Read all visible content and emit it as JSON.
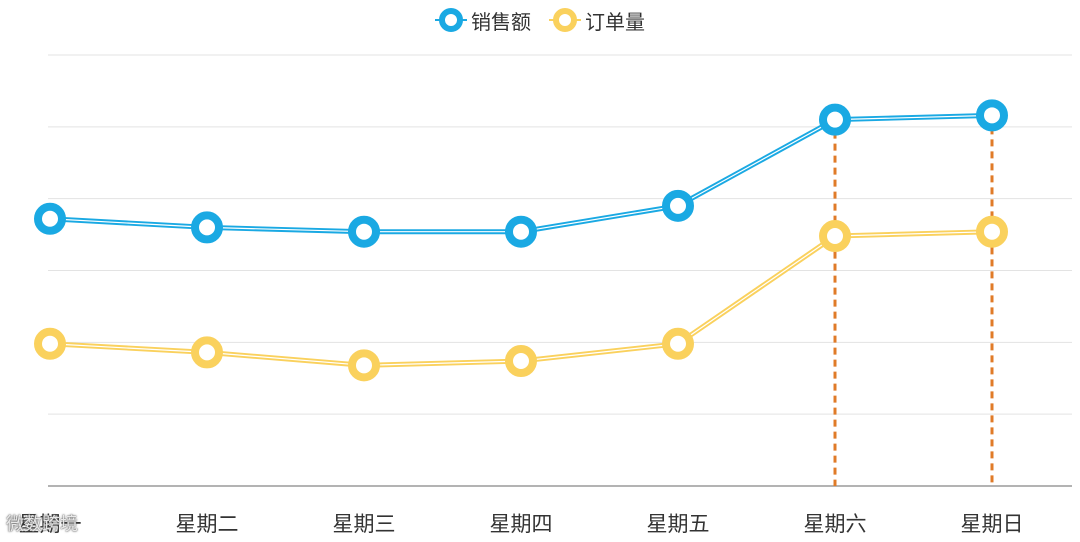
{
  "chart_data": {
    "type": "line",
    "categories": [
      "星期一",
      "星期二",
      "星期三",
      "星期四",
      "星期五",
      "星期六",
      "星期日"
    ],
    "series": [
      {
        "name": "销售额",
        "values": [
          62,
          60,
          59,
          59,
          65,
          85,
          86
        ],
        "color": "#1AA9E3"
      },
      {
        "name": "订单量",
        "values": [
          33,
          31,
          28,
          29,
          33,
          58,
          59
        ],
        "color": "#FAD15D"
      }
    ],
    "ylim": [
      0,
      100
    ],
    "grid": true,
    "legend_position": "top-center",
    "markers": "hollow-circle",
    "highlight_lines": {
      "categories": [
        "星期六",
        "星期日"
      ],
      "style": "dashed",
      "color": "#E07B28"
    }
  },
  "legend": {
    "items": [
      {
        "label": "销售额",
        "color": "#1AA9E3"
      },
      {
        "label": "订单量",
        "color": "#FAD15D"
      }
    ]
  },
  "watermark": "微数跨境"
}
